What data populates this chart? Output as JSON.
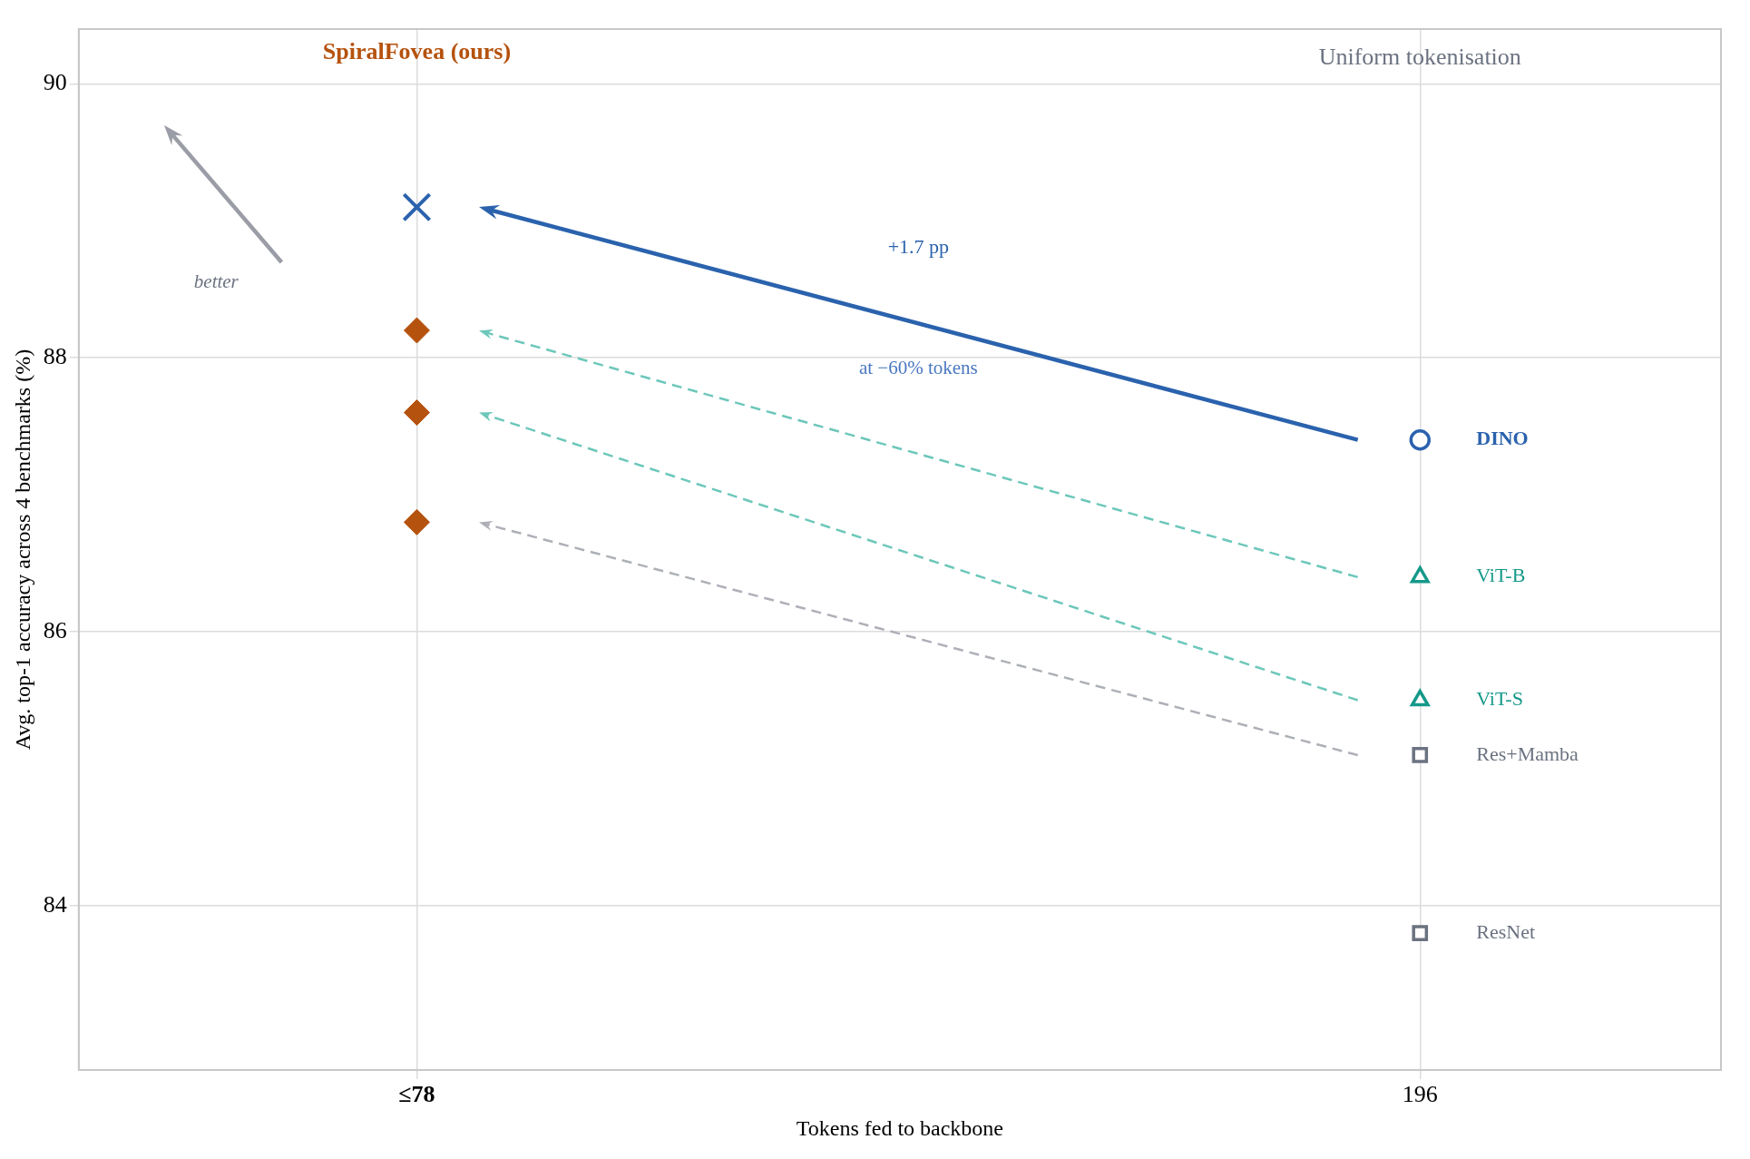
{
  "chart_data": {
    "type": "scatter",
    "xlabel": "Tokens fed to backbone",
    "ylabel": "Avg. top-1 accuracy across 4 benchmarks (%)",
    "categories": [
      "≤78",
      "196"
    ],
    "ylim": [
      82.8,
      90.4
    ],
    "yticks": [
      84,
      86,
      88,
      90
    ],
    "grid": true,
    "legend": false,
    "series": [
      {
        "x": [
          "≤78"
        ],
        "values": [
          89.1
        ],
        "color": "#2a62ad",
        "marker": "cross"
      },
      {
        "x": [
          "≤78",
          "≤78",
          "≤78"
        ],
        "values": [
          88.2,
          87.6,
          86.8
        ],
        "color": "#b5520e",
        "marker": "diamond"
      },
      {
        "name": "DINO",
        "x": [
          "196"
        ],
        "values": [
          87.4
        ],
        "color": "#2a62ad",
        "marker": "circle"
      },
      {
        "name": "ViT-B",
        "x": [
          "196"
        ],
        "values": [
          86.4
        ],
        "color": "#15998a",
        "marker": "triangle"
      },
      {
        "name": "ViT-S",
        "x": [
          "196"
        ],
        "values": [
          85.5
        ],
        "color": "#15998a",
        "marker": "triangle"
      },
      {
        "name": "Res+Mamba",
        "x": [
          "196"
        ],
        "values": [
          85.1
        ],
        "color": "#6b7280",
        "marker": "square"
      },
      {
        "name": "ResNet",
        "x": [
          "196"
        ],
        "values": [
          83.8
        ],
        "color": "#6b7280",
        "marker": "square"
      }
    ],
    "annotations": [
      "SpiralFovea (ours)",
      "Uniform tokenisation",
      "+1.7 pp",
      "at −60% tokens",
      "better"
    ]
  }
}
